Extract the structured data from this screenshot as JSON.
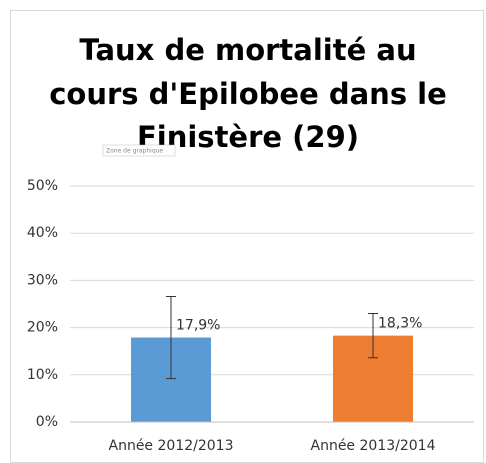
{
  "chart_data": {
    "type": "bar",
    "title": [
      "Taux de mortalité au",
      "cours d'Epilobee dans le",
      "Finistère (29)"
    ],
    "tooltip": "Zone de graphique",
    "categories": [
      "Année 2012/2013",
      "Année 2013/2014"
    ],
    "values": [
      17.9,
      18.3
    ],
    "value_labels": [
      "17,9%",
      "18,3%"
    ],
    "errors": [
      8.7,
      4.7
    ],
    "colors": [
      "#5b9bd5",
      "#ed7d31"
    ],
    "ylim": [
      0,
      50
    ],
    "yticks": [
      {
        "value": 0,
        "label": "0%"
      },
      {
        "value": 10,
        "label": "10%"
      },
      {
        "value": 20,
        "label": "20%"
      },
      {
        "value": 30,
        "label": "30%"
      },
      {
        "value": 40,
        "label": "40%"
      },
      {
        "value": 50,
        "label": "50%"
      }
    ],
    "grid": true
  }
}
